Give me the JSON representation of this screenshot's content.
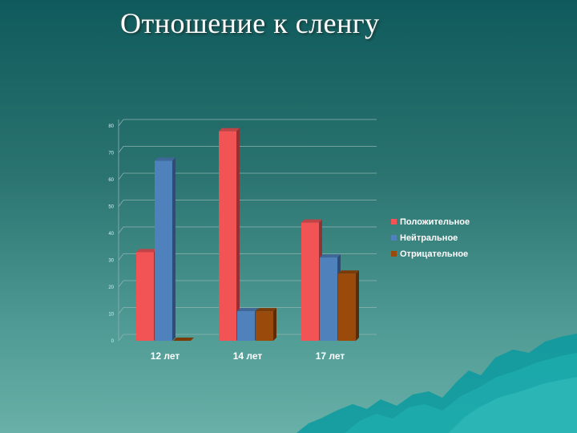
{
  "title": "Отношение к сленгу",
  "colors": {
    "positive": "#f25456",
    "neutral": "#4f81bd",
    "negative": "#9a4a0a"
  },
  "chart_data": {
    "type": "bar",
    "variant": "3d-clustered-column",
    "categories": [
      "12 лет",
      "14 лет",
      "17 лет"
    ],
    "series": [
      {
        "name": "Положительное",
        "values": [
          33,
          78,
          44
        ]
      },
      {
        "name": "Нейтральное",
        "values": [
          67,
          11,
          31
        ]
      },
      {
        "name": "Отрицательное",
        "values": [
          0,
          11,
          25
        ]
      }
    ],
    "ylim": [
      0,
      80
    ],
    "yticks": [
      0,
      10,
      20,
      30,
      40,
      50,
      60,
      70,
      80
    ],
    "grid": true,
    "legend": "right"
  }
}
